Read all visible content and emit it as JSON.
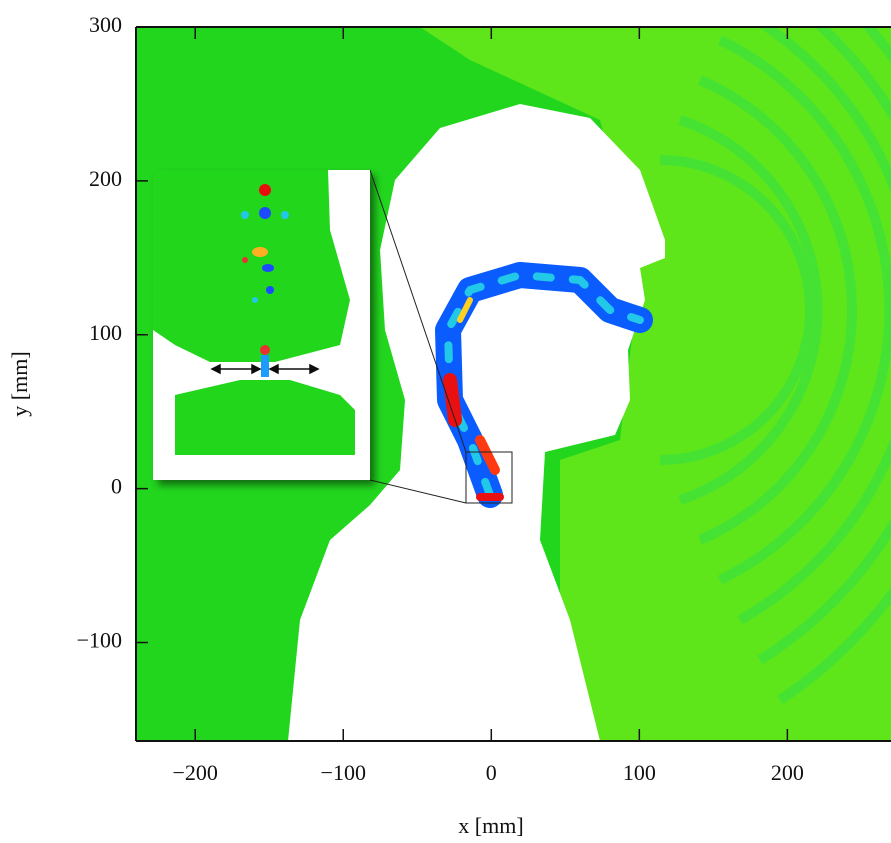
{
  "chart_data": {
    "type": "field",
    "xlabel": "x [mm]",
    "ylabel": "y [mm]",
    "xlim": [
      -240,
      270
    ],
    "ylim": [
      -164,
      300
    ],
    "xticks": [
      {
        "value": -200,
        "label": "−200"
      },
      {
        "value": -100,
        "label": "−100"
      },
      0,
      100,
      200
    ],
    "yticks": [
      {
        "value": -100,
        "label": "−100"
      },
      0,
      100,
      200,
      300
    ]
  }
}
